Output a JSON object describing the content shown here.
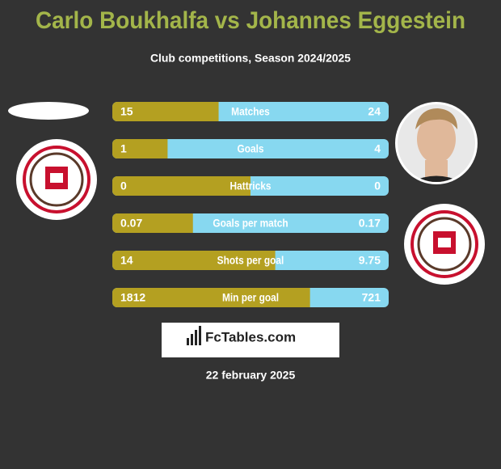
{
  "header": {
    "title": "Carlo Boukhalfa vs Johannes Eggestein",
    "subtitle": "Club competitions, Season 2024/2025"
  },
  "stats": [
    {
      "label": "Matches",
      "left": 15,
      "right": 24
    },
    {
      "label": "Goals",
      "left": 1,
      "right": 4
    },
    {
      "label": "Hattricks",
      "left": 0,
      "right": 0
    },
    {
      "label": "Goals per match",
      "left": 0.07,
      "right": 0.17
    },
    {
      "label": "Shots per goal",
      "left": 14,
      "right": 9.75
    },
    {
      "label": "Min per goal",
      "left": 1812,
      "right": 721
    }
  ],
  "brand": "FcTables.com",
  "date": "22 february 2025"
}
